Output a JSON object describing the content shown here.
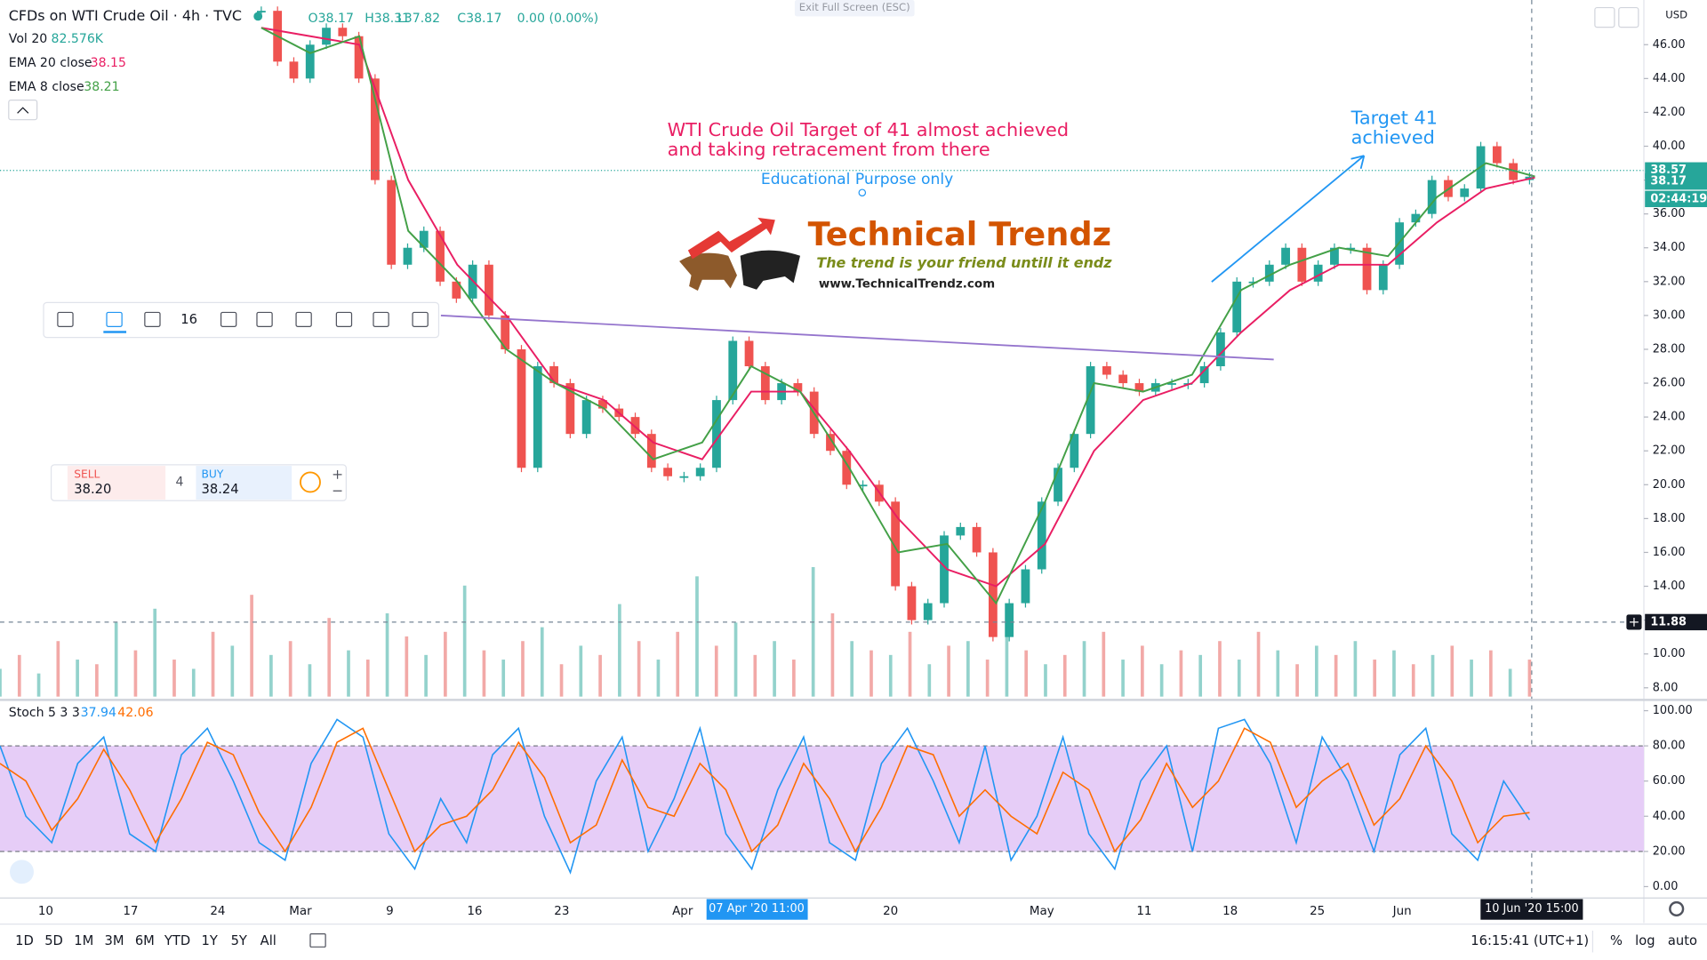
{
  "header": {
    "title": "CFDs on WTI Crude Oil · 4h · TVC",
    "open": "O38.17",
    "high": "H38.31",
    "low": "L37.82",
    "close": "C38.17",
    "change": "0.00 (0.00%)",
    "exit_fullscreen": "Exit Full Screen (ESC)",
    "currency": "USD"
  },
  "annotations": {
    "note_line1": "WTI Crude Oil Target of 41 almost achieved",
    "note_line2": "and taking retracement from there",
    "disclaimer": "Educational Purpose only",
    "target_line1": "Target 41",
    "target_line2": "achieved"
  },
  "logo": {
    "name": "Technical Trendz",
    "tagline": "The trend is your friend untill it endz",
    "url": "www.TechnicalTrendz.com"
  },
  "drawing_toolbar": {
    "font_size": "16"
  },
  "trade_panel": {
    "sell_label": "SELL",
    "sell_price": "38.20",
    "quantity": "4",
    "buy_label": "BUY",
    "buy_price": "38.24"
  },
  "chart_data": [
    {
      "type": "candlestick",
      "up_color": "#26a69a",
      "down_color": "#ef5350",
      "close": [
        48,
        45,
        44,
        46,
        47,
        46.5,
        44,
        38,
        33,
        34,
        35,
        32,
        31,
        33,
        30,
        28,
        21,
        27,
        26,
        23,
        25,
        24.5,
        24,
        23,
        21,
        20.5,
        20.5,
        21,
        25,
        28.5,
        27,
        25,
        26,
        25.5,
        23,
        22,
        20,
        20,
        19,
        14,
        12,
        13,
        17,
        17.5,
        16,
        11,
        13,
        15,
        19,
        21,
        23,
        27,
        26.5,
        26,
        25.5,
        26,
        26,
        26,
        27,
        29,
        32,
        32,
        33,
        34,
        32,
        33,
        34,
        34,
        31.5,
        33,
        35.5,
        36,
        38,
        37,
        37.5,
        40,
        39,
        38,
        38.2
      ],
      "series": [
        {
          "name": "EMA 20 close",
          "color": "#e91e63",
          "value_label": "38.15",
          "values": [
            47,
            46.5,
            46,
            38,
            33,
            30,
            26,
            25,
            22.5,
            21.5,
            25.5,
            25.5,
            22,
            18,
            15,
            14,
            16.5,
            22,
            25,
            26,
            29,
            31.5,
            33,
            33,
            35.5,
            37.5,
            38.15
          ]
        },
        {
          "name": "EMA 8 close",
          "color": "#43a047",
          "value_label": "38.21",
          "values": [
            47,
            45.5,
            46.5,
            35,
            32,
            28,
            26,
            24.5,
            21.5,
            22.5,
            27,
            25.5,
            21,
            16,
            16.5,
            13,
            19,
            26,
            25.5,
            26.5,
            31.5,
            33,
            34,
            33.5,
            37,
            39,
            38.21
          ]
        }
      ],
      "volume": {
        "name": "Vol 20",
        "value_label": "82.576K",
        "values": [
          30,
          45,
          25,
          60,
          40,
          35,
          80,
          50,
          95,
          40,
          30,
          70,
          55,
          110,
          45,
          60,
          35,
          85,
          50,
          40,
          90,
          65,
          45,
          70,
          120,
          50,
          40,
          60,
          75,
          35,
          55,
          45,
          100,
          60,
          40,
          70,
          130,
          55,
          80,
          45,
          60,
          40,
          140,
          90,
          60,
          50,
          45,
          70,
          35,
          55,
          60,
          40,
          80,
          50,
          35,
          45,
          60,
          70,
          40,
          55,
          35,
          50,
          45,
          60,
          40,
          70,
          50,
          35,
          55,
          45,
          60,
          40,
          50,
          35,
          45,
          55,
          40,
          50,
          30,
          40
        ]
      },
      "trendline": [
        30.0,
        27.4
      ],
      "ylim": [
        7.48,
        48.64
      ],
      "yticks": [
        {
          "value": 8,
          "label": "8.00"
        },
        {
          "value": 10,
          "label": "10.00"
        },
        {
          "value": 12,
          "label": "12.00"
        },
        {
          "value": 14,
          "label": "14.00"
        },
        {
          "value": 16,
          "label": "16.00"
        },
        {
          "value": 18,
          "label": "18.00"
        },
        {
          "value": 20,
          "label": "20.00"
        },
        {
          "value": 22,
          "label": "22.00"
        },
        {
          "value": 24,
          "label": "24.00"
        },
        {
          "value": 26,
          "label": "26.00"
        },
        {
          "value": 28,
          "label": "28.00"
        },
        {
          "value": 30,
          "label": "30.00"
        },
        {
          "value": 32,
          "label": "32.00"
        },
        {
          "value": 34,
          "label": "34.00"
        },
        {
          "value": 36,
          "label": "36.00"
        },
        {
          "value": 38,
          "label": "38.00"
        },
        {
          "value": 40,
          "label": "40.00"
        },
        {
          "value": 42,
          "label": "42.00"
        },
        {
          "value": 44,
          "label": "44.00"
        },
        {
          "value": 46,
          "label": "46.00"
        }
      ],
      "last_price_line": {
        "value": 38.57,
        "label": "38.57"
      },
      "close_badge": {
        "value": 38.17,
        "label": "38.17"
      },
      "countdown": "02:44:19",
      "crosshair": {
        "value": 11.88,
        "label": "11.88"
      },
      "xticks": [
        "10",
        "17",
        "24",
        "Mar",
        "9",
        "16",
        "23",
        "Apr",
        "20",
        "May",
        "11",
        "18",
        "25",
        "Jun"
      ],
      "hover_time": "07 Apr '20  11:00",
      "crosshair_time": "10 Jun '20   15:00"
    },
    {
      "type": "line",
      "title": "Stoch 5 3 3",
      "band": [
        20,
        80
      ],
      "band_color": "#e6cdf7",
      "series": [
        {
          "color": "#2196f3",
          "value_label": "37.94",
          "values": [
            80,
            40,
            25,
            70,
            85,
            30,
            20,
            75,
            90,
            60,
            25,
            15,
            70,
            95,
            85,
            30,
            10,
            50,
            25,
            75,
            90,
            40,
            8,
            60,
            85,
            20,
            50,
            90,
            30,
            10,
            55,
            85,
            25,
            15,
            70,
            90,
            60,
            25,
            80,
            15,
            40,
            85,
            30,
            10,
            60,
            80,
            20,
            90,
            95,
            70,
            25,
            85,
            60,
            20,
            75,
            90,
            30,
            15,
            60,
            37.94
          ]
        },
        {
          "color": "#ff6d00",
          "value_label": "42.06",
          "values": [
            70,
            60,
            32,
            50,
            78,
            55,
            25,
            50,
            82,
            75,
            42,
            20,
            45,
            82,
            90,
            55,
            20,
            35,
            40,
            55,
            82,
            62,
            25,
            35,
            72,
            45,
            40,
            70,
            55,
            20,
            35,
            70,
            50,
            20,
            45,
            80,
            75,
            40,
            55,
            40,
            30,
            65,
            55,
            20,
            38,
            70,
            45,
            60,
            90,
            82,
            45,
            60,
            70,
            35,
            50,
            80,
            60,
            25,
            40,
            42.06
          ]
        }
      ],
      "ylim": [
        -4.6,
        104.3
      ],
      "yticks": [
        {
          "value": 0,
          "label": "0.00"
        },
        {
          "value": 20,
          "label": "20.00"
        },
        {
          "value": 40,
          "label": "40.00"
        },
        {
          "value": 60,
          "label": "60.00"
        },
        {
          "value": 80,
          "label": "80.00"
        },
        {
          "value": 100,
          "label": "100.00"
        }
      ]
    }
  ],
  "bottom_toolbar": {
    "ranges": [
      "1D",
      "5D",
      "1M",
      "3M",
      "6M",
      "YTD",
      "1Y",
      "5Y",
      "All"
    ],
    "clock": "16:15:41 (UTC+1)",
    "percent": "%",
    "log": "log",
    "auto": "auto"
  }
}
